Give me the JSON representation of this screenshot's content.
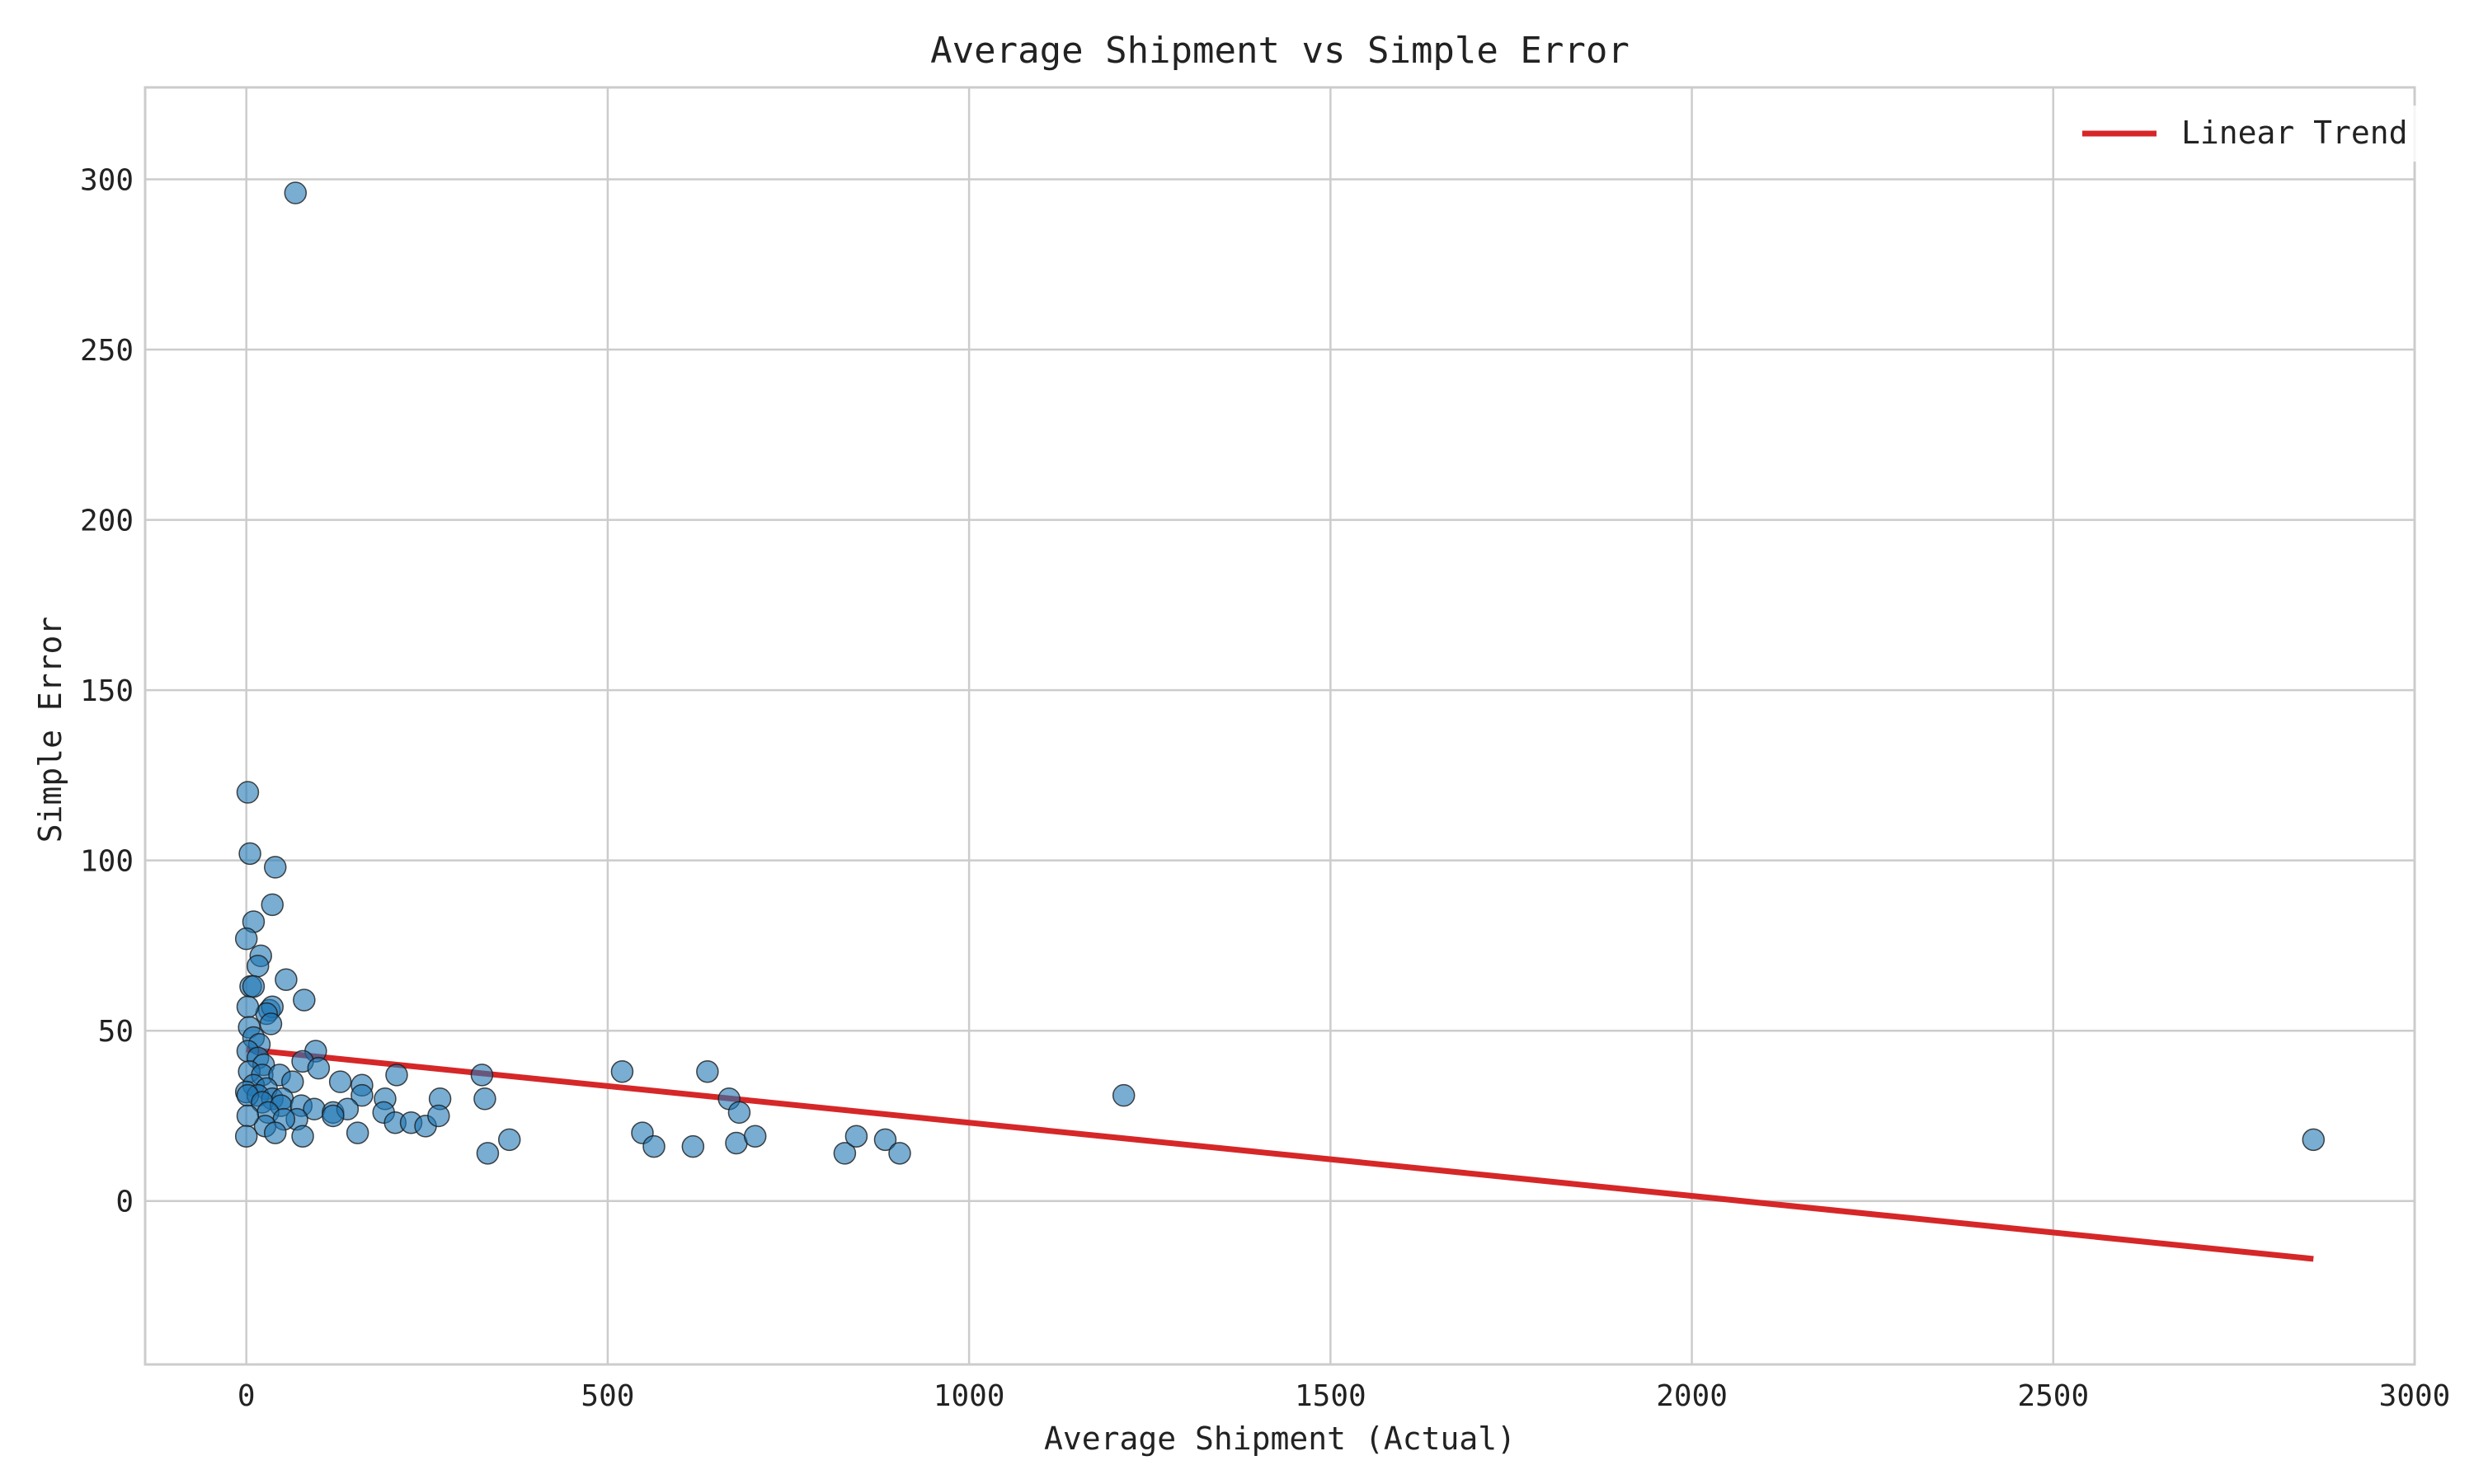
{
  "chart_data": {
    "type": "scatter",
    "title": "Average Shipment vs Simple Error",
    "xlabel": "Average Shipment (Actual)",
    "ylabel": "Simple Error",
    "xlim": [
      -140,
      3000
    ],
    "ylim": [
      -48,
      327
    ],
    "xticks": [
      0,
      500,
      1000,
      1500,
      2000,
      2500,
      3000
    ],
    "yticks": [
      0,
      50,
      100,
      150,
      200,
      250,
      300
    ],
    "grid": true,
    "legend": {
      "position": "top-right",
      "entries": [
        "Linear Trend"
      ]
    },
    "colors": {
      "points": "#1f77b4",
      "point_edge": "#1a1a1a",
      "trend": "#d62728",
      "grid": "#cccccc"
    },
    "series": [
      {
        "type": "scatter",
        "points": [
          [
            68,
            296
          ],
          [
            2,
            120
          ],
          [
            5,
            102
          ],
          [
            40,
            98
          ],
          [
            36,
            87
          ],
          [
            10,
            82
          ],
          [
            0,
            77
          ],
          [
            20,
            72
          ],
          [
            55,
            65
          ],
          [
            16,
            69
          ],
          [
            80,
            59
          ],
          [
            6,
            63
          ],
          [
            10,
            63
          ],
          [
            32,
            56
          ],
          [
            36,
            57
          ],
          [
            28,
            55
          ],
          [
            34,
            52
          ],
          [
            2,
            57
          ],
          [
            4,
            51
          ],
          [
            10,
            48
          ],
          [
            18,
            46
          ],
          [
            2,
            44
          ],
          [
            96,
            44
          ],
          [
            16,
            42
          ],
          [
            78,
            41
          ],
          [
            24,
            40
          ],
          [
            100,
            39
          ],
          [
            4,
            38
          ],
          [
            22,
            37
          ],
          [
            46,
            37
          ],
          [
            64,
            35
          ],
          [
            130,
            35
          ],
          [
            160,
            34
          ],
          [
            10,
            34
          ],
          [
            28,
            33
          ],
          [
            0,
            32
          ],
          [
            16,
            31
          ],
          [
            36,
            30
          ],
          [
            50,
            30
          ],
          [
            160,
            31
          ],
          [
            192,
            30
          ],
          [
            268,
            30
          ],
          [
            2,
            31
          ],
          [
            22,
            29
          ],
          [
            48,
            28
          ],
          [
            76,
            28
          ],
          [
            94,
            27
          ],
          [
            120,
            26
          ],
          [
            140,
            27
          ],
          [
            190,
            26
          ],
          [
            30,
            26
          ],
          [
            70,
            24
          ],
          [
            52,
            24
          ],
          [
            120,
            25
          ],
          [
            206,
            23
          ],
          [
            228,
            23
          ],
          [
            248,
            22
          ],
          [
            266,
            25
          ],
          [
            26,
            22
          ],
          [
            40,
            20
          ],
          [
            154,
            20
          ],
          [
            78,
            19
          ],
          [
            2,
            25
          ],
          [
            0,
            19
          ],
          [
            208,
            37
          ],
          [
            326,
            37
          ],
          [
            330,
            30
          ],
          [
            364,
            18
          ],
          [
            334,
            14
          ],
          [
            520,
            38
          ],
          [
            548,
            20
          ],
          [
            564,
            16
          ],
          [
            618,
            16
          ],
          [
            638,
            38
          ],
          [
            668,
            30
          ],
          [
            682,
            26
          ],
          [
            678,
            17
          ],
          [
            704,
            19
          ],
          [
            828,
            14
          ],
          [
            844,
            19
          ],
          [
            884,
            18
          ],
          [
            904,
            14
          ],
          [
            1214,
            31
          ],
          [
            2860,
            18
          ]
        ]
      },
      {
        "type": "line",
        "name": "Linear Trend",
        "points": [
          [
            0,
            44.5
          ],
          [
            2860,
            -17
          ]
        ]
      }
    ]
  }
}
